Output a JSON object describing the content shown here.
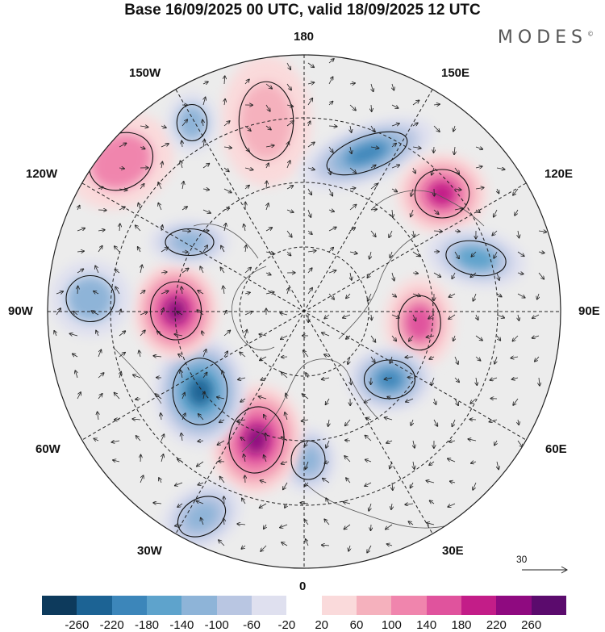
{
  "title": "Base 16/09/2025 00 UTC, valid 18/09/2025 12 UTC",
  "brand": "MODES",
  "brand_mark": "©",
  "longitude_labels": {
    "top": "180",
    "bottom": "0",
    "left": "90W",
    "right": "90E",
    "upper_left_1": "150W",
    "upper_left_2": "120W",
    "upper_right_1": "150E",
    "upper_right_2": "120E",
    "lower_left_1": "60W",
    "lower_left_2": "30W",
    "lower_right_1": "60E",
    "lower_right_2": "30E"
  },
  "vector_scale_label": "30",
  "colorbar": {
    "colors": [
      "#0d3a5c",
      "#1c6394",
      "#3c86ba",
      "#5ea3cc",
      "#8eb4d8",
      "#b9c6e2",
      "#dfe0ef",
      "#ffffff",
      "#fadadb",
      "#f5b1bd",
      "#f085ad",
      "#e0539d",
      "#c31d88",
      "#8f0a80",
      "#5b0b6d"
    ],
    "ticks": [
      "-260",
      "-220",
      "-180",
      "-140",
      "-100",
      "-60",
      "-20",
      "20",
      "60",
      "100",
      "140",
      "180",
      "220",
      "260"
    ]
  },
  "anomalies": [
    {
      "name": "pacific-high-1",
      "value": 90
    },
    {
      "name": "pacific-high-2",
      "value": 110
    },
    {
      "name": "east-siberia-low",
      "value": -190
    },
    {
      "name": "siberia-high",
      "value": 210
    },
    {
      "name": "central-siberia-low",
      "value": -150
    },
    {
      "name": "asia-high",
      "value": 150
    },
    {
      "name": "ural-low",
      "value": -200
    },
    {
      "name": "scandinavia-low",
      "value": -140
    },
    {
      "name": "atlantic-high",
      "value": 230
    },
    {
      "name": "greenland-low",
      "value": -250
    },
    {
      "name": "canada-high",
      "value": 240
    },
    {
      "name": "hudson-low",
      "value": -130
    },
    {
      "name": "pacific-low-nw",
      "value": -120
    },
    {
      "name": "alaska-low",
      "value": -110
    },
    {
      "name": "atlantic-low-south",
      "value": -130
    }
  ]
}
